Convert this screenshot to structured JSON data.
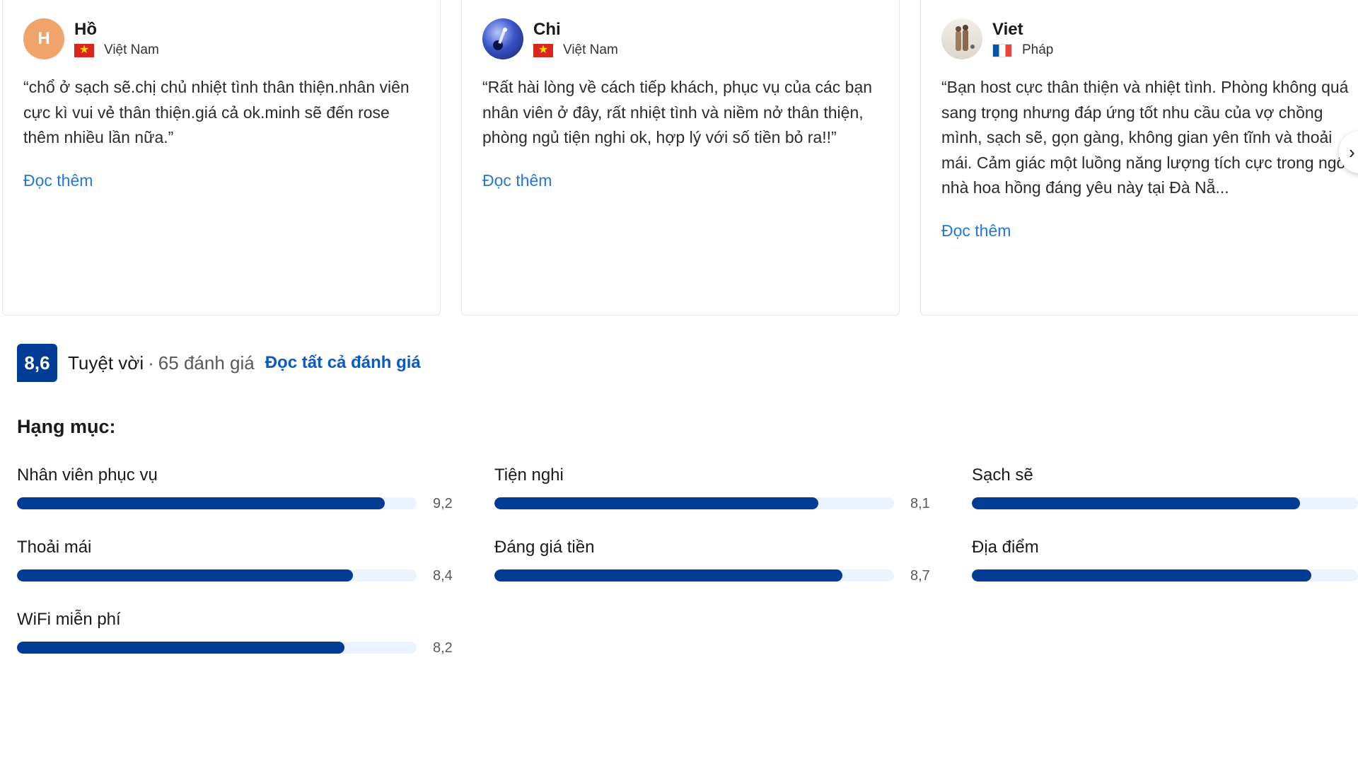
{
  "reviews": [
    {
      "initial": "H",
      "name": "Hồ",
      "country": "Việt Nam",
      "text": "“chổ ở sạch sẽ.chị chủ nhiệt tình thân thiện.nhân viên cực kì vui vẻ thân thiện.giá cả ok.minh sẽ đến rose thêm nhiều lần nữa.”",
      "read_more": "Đọc thêm"
    },
    {
      "name": "Chi",
      "country": "Việt Nam",
      "text": "“Rất hài lòng về cách tiếp khách, phục vụ của các bạn nhân viên ở đây, rất nhiệt tình và niềm nở thân thiện, phòng ngủ tiện nghi ok, hợp lý với số tiền bỏ ra!!”",
      "read_more": "Đọc thêm"
    },
    {
      "name": "Viet",
      "country": "Pháp",
      "text": "“Bạn host cực thân thiện và nhiệt tình. Phòng không quá sang trọng nhưng đáp ứng tốt nhu cầu của vợ chồng mình, sạch sẽ, gọn gàng, không gian yên tĩnh và thoải mái. Cảm giác một luồng năng lượng tích cực trong ngôi nhà hoa hồng đáng yêu này tại Đà Nẵ...",
      "read_more": "Đọc thêm"
    }
  ],
  "summary": {
    "score": "8,6",
    "word": "Tuyệt vời",
    "separator": "·",
    "count": "65 đánh giá",
    "read_all": "Đọc tất cả đánh giá"
  },
  "categories_heading": "Hạng mục:",
  "categories": [
    {
      "label": "Nhân viên phục vụ",
      "value": "9,2",
      "score": 9.2
    },
    {
      "label": "Tiện nghi",
      "value": "8,1",
      "score": 8.1
    },
    {
      "label": "Sạch sẽ",
      "value": "",
      "score": 8.5
    },
    {
      "label": "Thoải mái",
      "value": "8,4",
      "score": 8.4
    },
    {
      "label": "Đáng giá tiền",
      "value": "8,7",
      "score": 8.7
    },
    {
      "label": "Địa điểm",
      "value": "",
      "score": 8.8
    },
    {
      "label": "WiFi miễn phí",
      "value": "8,2",
      "score": 8.2
    }
  ],
  "colors": {
    "brand": "#003b95",
    "link": "#2476d8",
    "bar_track": "#ebf3ff"
  },
  "icons": {
    "next": "chevron-right-icon"
  }
}
